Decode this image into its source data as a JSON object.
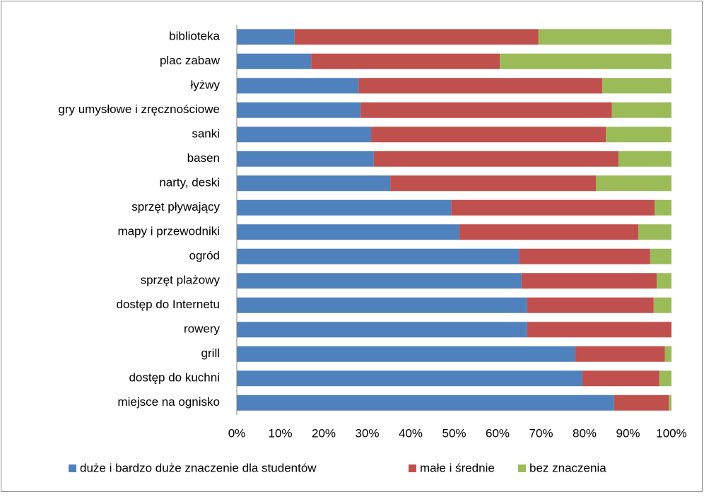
{
  "chart_data": {
    "type": "stacked_bar_horizontal",
    "categories": [
      "biblioteka",
      "plac zabaw",
      "łyżwy",
      "gry umysłowe i zręcznościowe",
      "sanki",
      "basen",
      "narty, deski",
      "sprzęt pływający",
      "mapy i przewodniki",
      "ogród",
      "sprzęt plażowy",
      "dostęp do Internetu",
      "rowery",
      "grill",
      "dostęp do kuchni",
      "miejsce na ognisko"
    ],
    "series": [
      {
        "name": "duże i bardzo duże znaczenie dla studentów",
        "color": "#4f81bd",
        "values": [
          13.3,
          17.1,
          28.0,
          28.5,
          30.9,
          31.5,
          35.3,
          49.3,
          51.2,
          64.9,
          65.5,
          66.8,
          66.8,
          77.9,
          79.5,
          86.8
        ]
      },
      {
        "name": "małe i średnie",
        "color": "#c0504d",
        "values": [
          56.1,
          43.4,
          56.1,
          57.8,
          54.0,
          56.3,
          47.3,
          46.8,
          41.2,
          30.2,
          31.1,
          29.1,
          33.2,
          20.6,
          17.7,
          12.6
        ]
      },
      {
        "name": "bez znaczenia",
        "color": "#9bbb59",
        "values": [
          30.6,
          39.5,
          15.9,
          13.7,
          15.1,
          12.2,
          17.4,
          3.9,
          7.6,
          4.9,
          3.4,
          4.1,
          0,
          1.5,
          2.8,
          0.6
        ]
      }
    ],
    "xlim": [
      0,
      100
    ],
    "xticks": [
      {
        "value": 0,
        "label": "0%"
      },
      {
        "value": 10,
        "label": "10%"
      },
      {
        "value": 20,
        "label": "20%"
      },
      {
        "value": 30,
        "label": "30%"
      },
      {
        "value": 40,
        "label": "40%"
      },
      {
        "value": 50,
        "label": "50%"
      },
      {
        "value": 60,
        "label": "60%"
      },
      {
        "value": 70,
        "label": "70%"
      },
      {
        "value": 80,
        "label": "80%"
      },
      {
        "value": 90,
        "label": "90%"
      },
      {
        "value": 100,
        "label": "100%"
      }
    ],
    "grid": false,
    "legend": "bottom"
  }
}
